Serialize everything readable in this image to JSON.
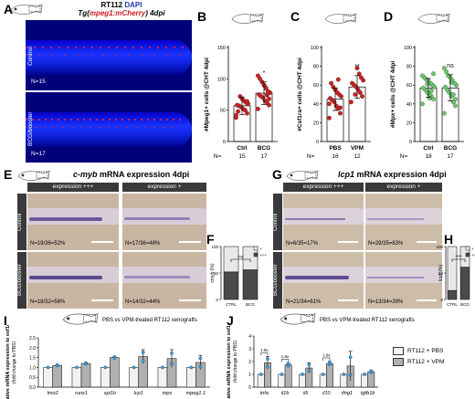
{
  "panels": {
    "A": {
      "letter": "A",
      "title_prefix": "RT112",
      "title_dapi": "DAPI",
      "title_tg": "Tg(",
      "title_gene": "mpeg1:mCherry",
      "title_suffix": ") 4dpi",
      "rows": [
        {
          "label": "Control",
          "n": "N=15"
        },
        {
          "label": "BCG/booster",
          "n": "N=17"
        }
      ]
    },
    "B": {
      "letter": "B"
    },
    "C": {
      "letter": "C"
    },
    "D": {
      "letter": "D"
    },
    "E": {
      "letter": "E",
      "title_gene": "c-myb",
      "title_rest": " mRNA expression  4dpi",
      "col_headers": [
        "expression +++",
        "expression +"
      ],
      "rows": [
        {
          "label": "Control",
          "n": [
            "N=19/36=52%",
            "N=17/36=48%"
          ]
        },
        {
          "label": "BCG/booster",
          "n": [
            "N=18/32=56%",
            "N=14/32=44%"
          ]
        }
      ]
    },
    "F": {
      "letter": "F"
    },
    "G": {
      "letter": "G",
      "title_gene": "lcp1",
      "title_rest": " mRNA expression 4dpi",
      "col_headers": [
        "expression +++",
        "expression +"
      ],
      "rows": [
        {
          "label": "Control",
          "n": [
            "N=6/35=17%",
            "N=29/35=83%"
          ]
        },
        {
          "label": "BCG/booster",
          "n": [
            "N=21/34=61%",
            "N=13/34=39%"
          ]
        }
      ]
    },
    "H": {
      "letter": "H"
    },
    "I": {
      "letter": "I",
      "caption": "PBS vs VPM-treated RT112 xenografts"
    },
    "J": {
      "letter": "J",
      "caption": "PBS vs VPM-treated RT112 xenografts"
    }
  },
  "legend": {
    "items": [
      "RT112 + PBS",
      "RT112 + VPM"
    ]
  },
  "colors": {
    "ctrl": "#f5c8c8",
    "red": "#cc2020",
    "green": "#6ac96a",
    "greendk": "#2e8b2e",
    "gray": "#b0b0b0",
    "blue": "#3aa0e0",
    "fish": "#9fa8b8"
  },
  "chart_data": [
    {
      "id": "B",
      "type": "bar",
      "ylabel": "#Mpeg1+ cells @CHT 4dpi",
      "ylim": [
        0,
        150
      ],
      "yticks": [
        0,
        50,
        100,
        150
      ],
      "categories": [
        "Ctrl",
        "BCG"
      ],
      "values": [
        57,
        77
      ],
      "errors": [
        14,
        18
      ],
      "n_label": "N=",
      "n": [
        "15",
        "17"
      ],
      "significance": [
        "",
        "*"
      ],
      "color": "#cc2020",
      "points": [
        [
          38,
          45,
          50,
          52,
          55,
          57,
          58,
          60,
          62,
          65,
          68,
          72,
          48,
          42,
          64
        ],
        [
          52,
          58,
          62,
          65,
          70,
          72,
          75,
          78,
          80,
          85,
          90,
          95,
          100,
          105,
          68,
          74,
          88
        ]
      ]
    },
    {
      "id": "C",
      "type": "bar",
      "ylabel": "#Csf1ra+ cells @CHT 4dpi",
      "ylim": [
        0,
        100
      ],
      "yticks": [
        0,
        20,
        40,
        60,
        80,
        100
      ],
      "categories": [
        "PBS",
        "VPM"
      ],
      "values": [
        45,
        58
      ],
      "errors": [
        12,
        12
      ],
      "n_label": "N=",
      "n": [
        "16",
        "12"
      ],
      "significance": [
        "",
        "**"
      ],
      "color": "#cc2020",
      "points": [
        [
          25,
          30,
          35,
          38,
          42,
          44,
          46,
          48,
          50,
          52,
          55,
          58,
          62,
          40,
          36,
          66
        ],
        [
          42,
          48,
          52,
          55,
          58,
          60,
          62,
          65,
          68,
          72,
          78,
          50
        ]
      ]
    },
    {
      "id": "D",
      "type": "bar",
      "ylabel": "#Mpx+ cells @CHT 4dpi",
      "ylim": [
        0,
        100
      ],
      "yticks": [
        0,
        20,
        40,
        60,
        80,
        100
      ],
      "categories": [
        "Ctrl",
        "BCG"
      ],
      "values": [
        57,
        57
      ],
      "errors": [
        10,
        14
      ],
      "n_label": "N=",
      "n": [
        "18",
        "17"
      ],
      "significance": [
        "",
        "ns"
      ],
      "color": "#6ac96a",
      "points": [
        [
          40,
          45,
          48,
          50,
          52,
          55,
          57,
          58,
          60,
          62,
          64,
          66,
          68,
          70,
          72,
          54,
          46,
          61
        ],
        [
          30,
          38,
          42,
          48,
          52,
          55,
          58,
          60,
          62,
          65,
          68,
          70,
          74,
          78,
          45,
          50,
          63
        ]
      ]
    },
    {
      "id": "F",
      "type": "bar",
      "stacked": true,
      "ylabel": "cmyb (%)",
      "ylim": [
        0,
        100
      ],
      "yticks": [
        0,
        50,
        100
      ],
      "categories": [
        "CTRL",
        "BCG"
      ],
      "series": [
        {
          "name": "+++",
          "values": [
            52,
            56
          ]
        },
        {
          "name": "+",
          "values": [
            48,
            44
          ]
        }
      ],
      "legend": [
        "+",
        "+++"
      ],
      "significance": "ns"
    },
    {
      "id": "H",
      "type": "bar",
      "stacked": true,
      "ylabel": "lcp1 (%)",
      "ylim": [
        0,
        100
      ],
      "yticks": [
        0,
        50,
        100
      ],
      "categories": [
        "CTRL",
        "BCG"
      ],
      "series": [
        {
          "name": "+++",
          "values": [
            17,
            61
          ]
        },
        {
          "name": "+",
          "values": [
            83,
            39
          ]
        }
      ],
      "legend": [
        "+",
        "+++"
      ],
      "significance": "****"
    },
    {
      "id": "I",
      "type": "bar",
      "ylabel": "Relative mRNA expression to eef1a1a",
      "ylabel2": "(fold change to PBS)",
      "ylim": [
        0,
        2.5
      ],
      "yticks": [
        "0.0",
        "0.5",
        "1.0",
        "1.5",
        "2.0",
        "2.5"
      ],
      "categories": [
        "lmo2",
        "runx1",
        "spi1b",
        "lcp1",
        "mpx",
        "mpeg1.1"
      ],
      "series": [
        {
          "name": "RT112 + PBS",
          "values": [
            1,
            1,
            1,
            1,
            1,
            1
          ]
        },
        {
          "name": "RT112 + VPM",
          "values": [
            1.1,
            1.2,
            1.5,
            1.55,
            1.45,
            1.25
          ]
        }
      ],
      "errors": [
        0.02,
        0.03,
        0.05,
        0.35,
        0.45,
        0.35
      ]
    },
    {
      "id": "J",
      "type": "bar",
      "ylabel": "Relative mRNA expression to eef1a1a",
      "ylabel2": "(fold change to PBS)",
      "ylim": [
        0,
        4
      ],
      "yticks": [
        "0",
        "1",
        "2",
        "3",
        "4"
      ],
      "categories": [
        "tnfa",
        "il1b",
        "il6",
        "il10",
        "ifng1",
        "tgfb1b"
      ],
      "series": [
        {
          "name": "RT112 + PBS",
          "values": [
            1,
            1,
            1,
            1,
            1,
            1
          ]
        },
        {
          "name": "RT112 + VPM",
          "values": [
            1.9,
            1.75,
            1.5,
            1.85,
            1.65,
            1.2
          ]
        }
      ],
      "errors": [
        0.5,
        0.15,
        0.4,
        0.15,
        1.15,
        0.1
      ],
      "annotations": [
        {
          "text": "1.9x",
          "cat": 0
        },
        {
          "text": "1.8x",
          "cat": 1
        },
        {
          "text": "1.9x",
          "cat": 3
        }
      ]
    }
  ]
}
